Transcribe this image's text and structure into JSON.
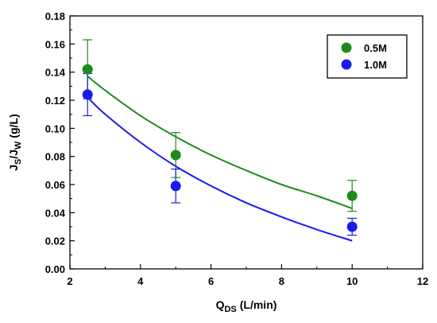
{
  "chart_data": {
    "type": "scatter",
    "x_label_main": "Q",
    "x_label_sub": "DS",
    "x_label_units": "(L/min)",
    "y_label_j1": "J",
    "y_label_s": "S",
    "y_label_slash": "/J",
    "y_label_w": "W",
    "y_label_units": "(g/L)",
    "xlim": [
      2,
      12
    ],
    "ylim": [
      0,
      0.18
    ],
    "x_ticks": [
      2,
      4,
      6,
      8,
      10,
      12
    ],
    "x_tick_labels": [
      "2",
      "4",
      "6",
      "8",
      "10",
      "12"
    ],
    "y_ticks": [
      0,
      0.02,
      0.04,
      0.06,
      0.08,
      0.1,
      0.12,
      0.14,
      0.16,
      0.18
    ],
    "y_tick_labels": [
      "0.00",
      "0.02",
      "0.04",
      "0.06",
      "0.08",
      "0.10",
      "0.12",
      "0.14",
      "0.16",
      "0.18"
    ],
    "legend_position": "top-right",
    "series": [
      {
        "name": "0.5M",
        "color": "#1e8a1e",
        "x": [
          2.5,
          5,
          10
        ],
        "y": [
          0.142,
          0.081,
          0.052
        ],
        "err": [
          0.021,
          0.016,
          0.011
        ],
        "fit_x": [
          2.5,
          3,
          4,
          5,
          6,
          7,
          8,
          9,
          10
        ],
        "fit_y": [
          0.137,
          0.127,
          0.109,
          0.094,
          0.081,
          0.07,
          0.06,
          0.052,
          0.043
        ]
      },
      {
        "name": "1.0M",
        "color": "#1a1aee",
        "x": [
          2.5,
          5,
          10
        ],
        "y": [
          0.124,
          0.059,
          0.03
        ],
        "err": [
          0.015,
          0.012,
          0.006
        ],
        "fit_x": [
          2.5,
          3,
          4,
          5,
          6,
          7,
          8,
          9,
          10
        ],
        "fit_y": [
          0.122,
          0.11,
          0.09,
          0.073,
          0.059,
          0.047,
          0.037,
          0.028,
          0.02
        ]
      }
    ]
  }
}
